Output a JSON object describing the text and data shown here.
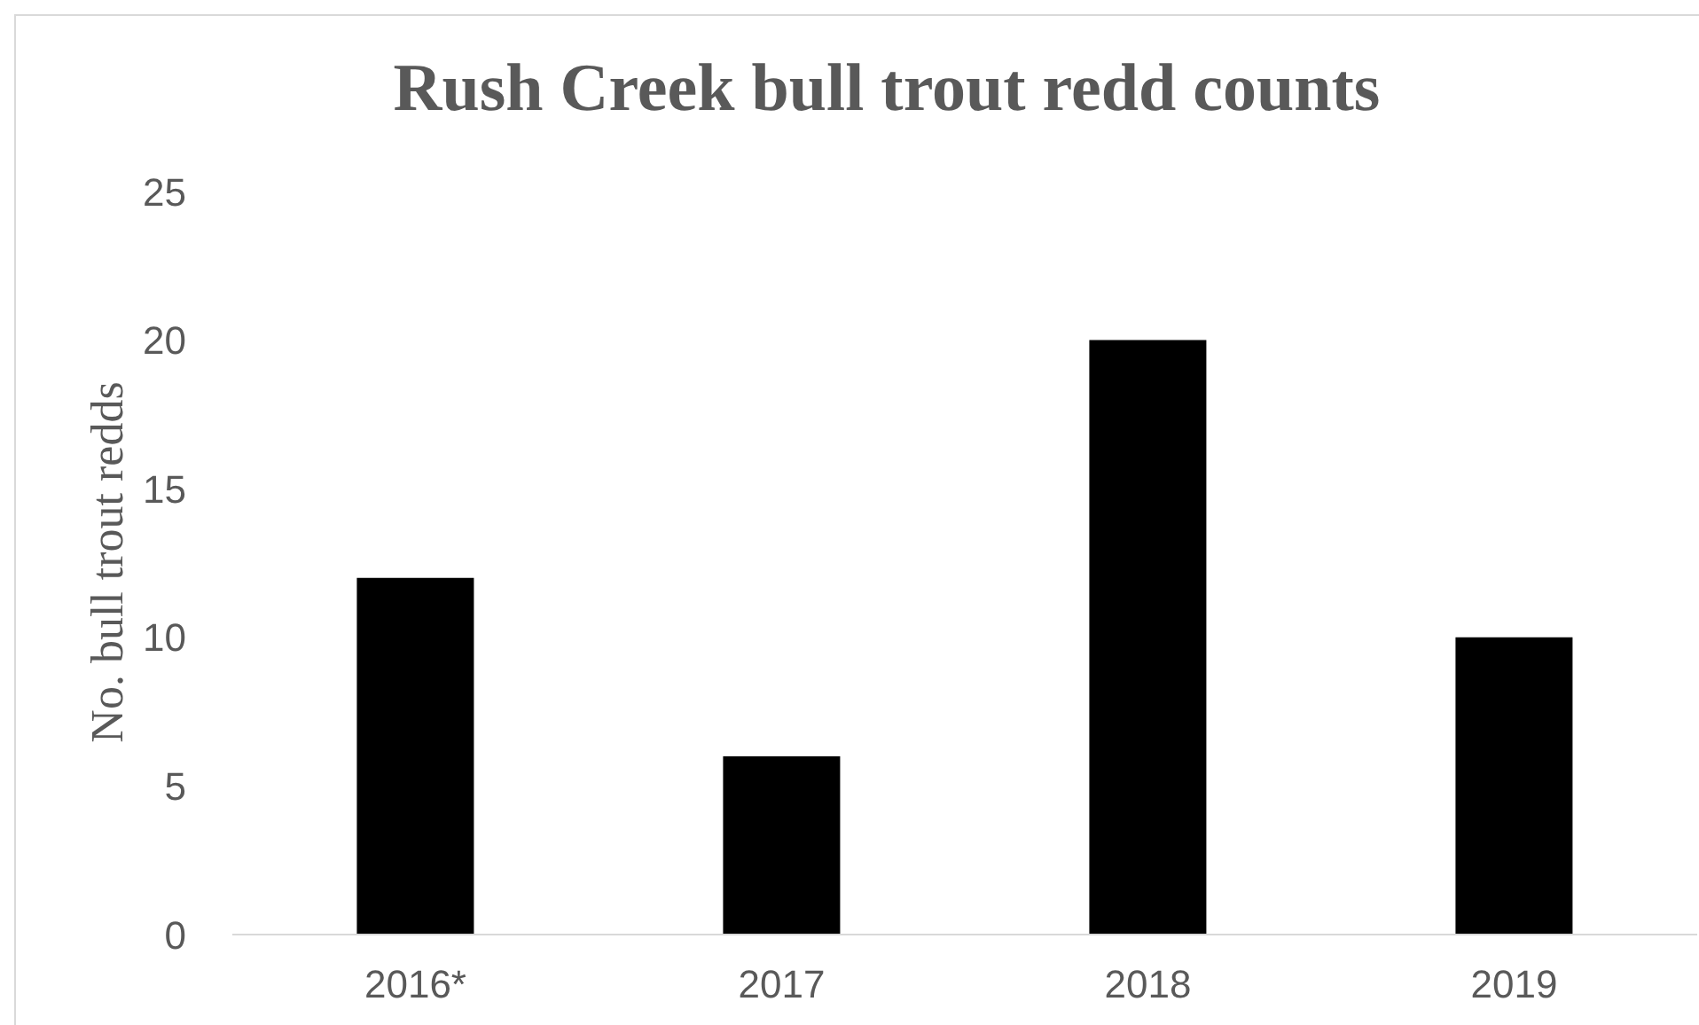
{
  "chart_data": {
    "type": "bar",
    "title": "Rush Creek bull trout redd counts",
    "ylabel": "No. bull trout redds",
    "categories": [
      "2016*",
      "2017",
      "2018",
      "2019"
    ],
    "values": [
      12,
      6,
      20,
      10
    ],
    "color": "#000000",
    "ylim": [
      0,
      25
    ],
    "yticks": [
      0,
      5,
      10,
      15,
      20,
      25
    ]
  }
}
